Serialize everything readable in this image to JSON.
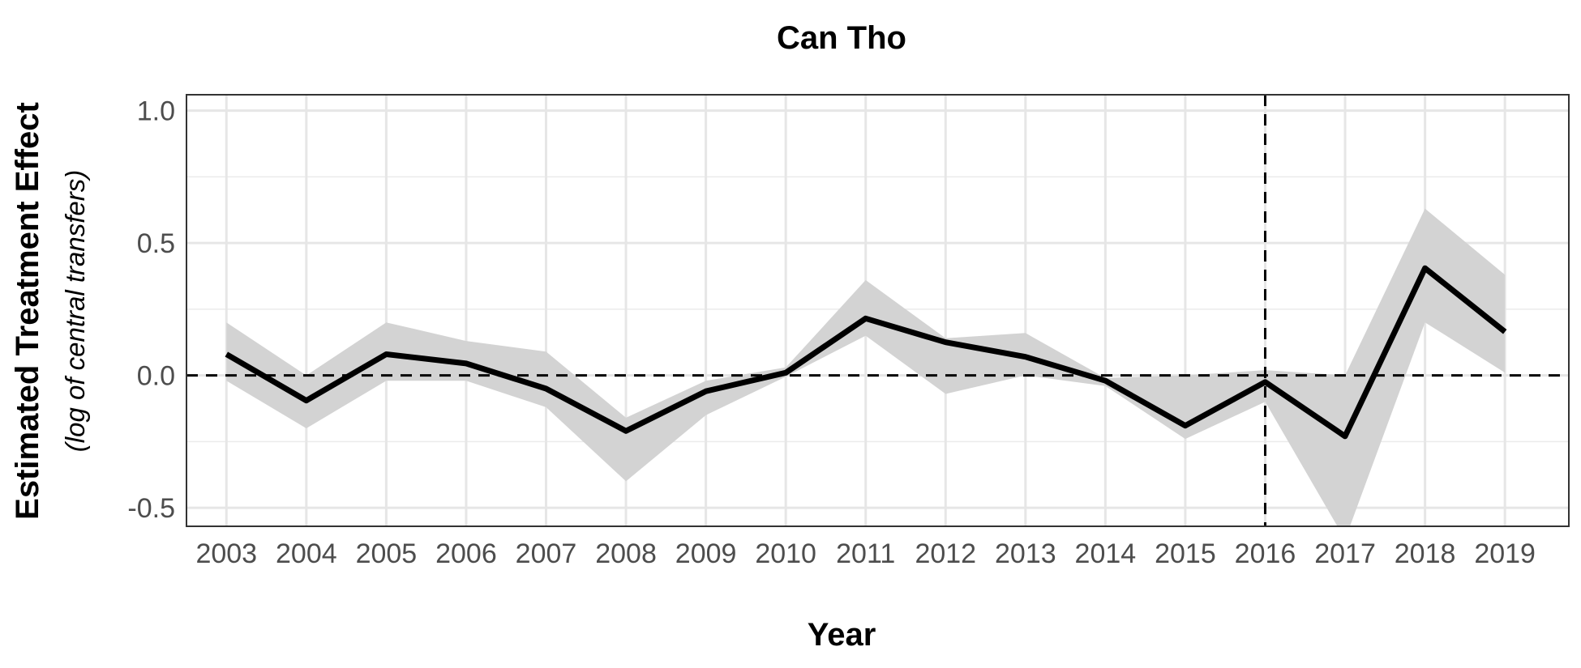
{
  "chart_data": {
    "type": "line",
    "title": "Can Tho",
    "xlabel": "Year",
    "ylabel": "Estimated Treatment Effect",
    "ylabel_sub": "(log of central transfers)",
    "x": [
      2003,
      2004,
      2005,
      2006,
      2007,
      2008,
      2009,
      2010,
      2011,
      2012,
      2013,
      2014,
      2015,
      2016,
      2017,
      2018,
      2019
    ],
    "x_tick_labels": [
      "2003",
      "2004",
      "2005",
      "2006",
      "2007",
      "2008",
      "2009",
      "2010",
      "2011",
      "2012",
      "2013",
      "2014",
      "2015",
      "2016",
      "2017",
      "2018",
      "2019"
    ],
    "y_ticks": [
      1.0,
      0.5,
      0.0,
      -0.5
    ],
    "y_tick_labels": [
      "1.0",
      "0.5",
      "0.0",
      "-0.5"
    ],
    "xlim": [
      2002.5,
      2019.8
    ],
    "ylim": [
      -0.57,
      1.06
    ],
    "series": [
      {
        "values": [
          0.08,
          -0.095,
          0.08,
          0.045,
          -0.05,
          -0.21,
          -0.06,
          0.01,
          0.215,
          0.125,
          0.07,
          -0.02,
          -0.19,
          -0.025,
          -0.23,
          0.405,
          0.165
        ],
        "upper": [
          0.2,
          0.0,
          0.2,
          0.13,
          0.09,
          -0.16,
          -0.02,
          0.03,
          0.36,
          0.14,
          0.16,
          -0.01,
          0.0,
          0.02,
          0.0,
          0.63,
          0.38
        ],
        "lower": [
          -0.02,
          -0.2,
          -0.02,
          -0.02,
          -0.12,
          -0.4,
          -0.15,
          -0.005,
          0.15,
          -0.07,
          0.0,
          -0.04,
          -0.24,
          -0.1,
          -0.62,
          0.2,
          0.01
        ],
        "color": "#000000",
        "ribbon_color": "#d3d3d3"
      }
    ],
    "reference_lines": {
      "horizontal_y": 0.0,
      "vertical_x": 2016,
      "style": "dashed"
    },
    "grid": true,
    "legend": "none"
  }
}
